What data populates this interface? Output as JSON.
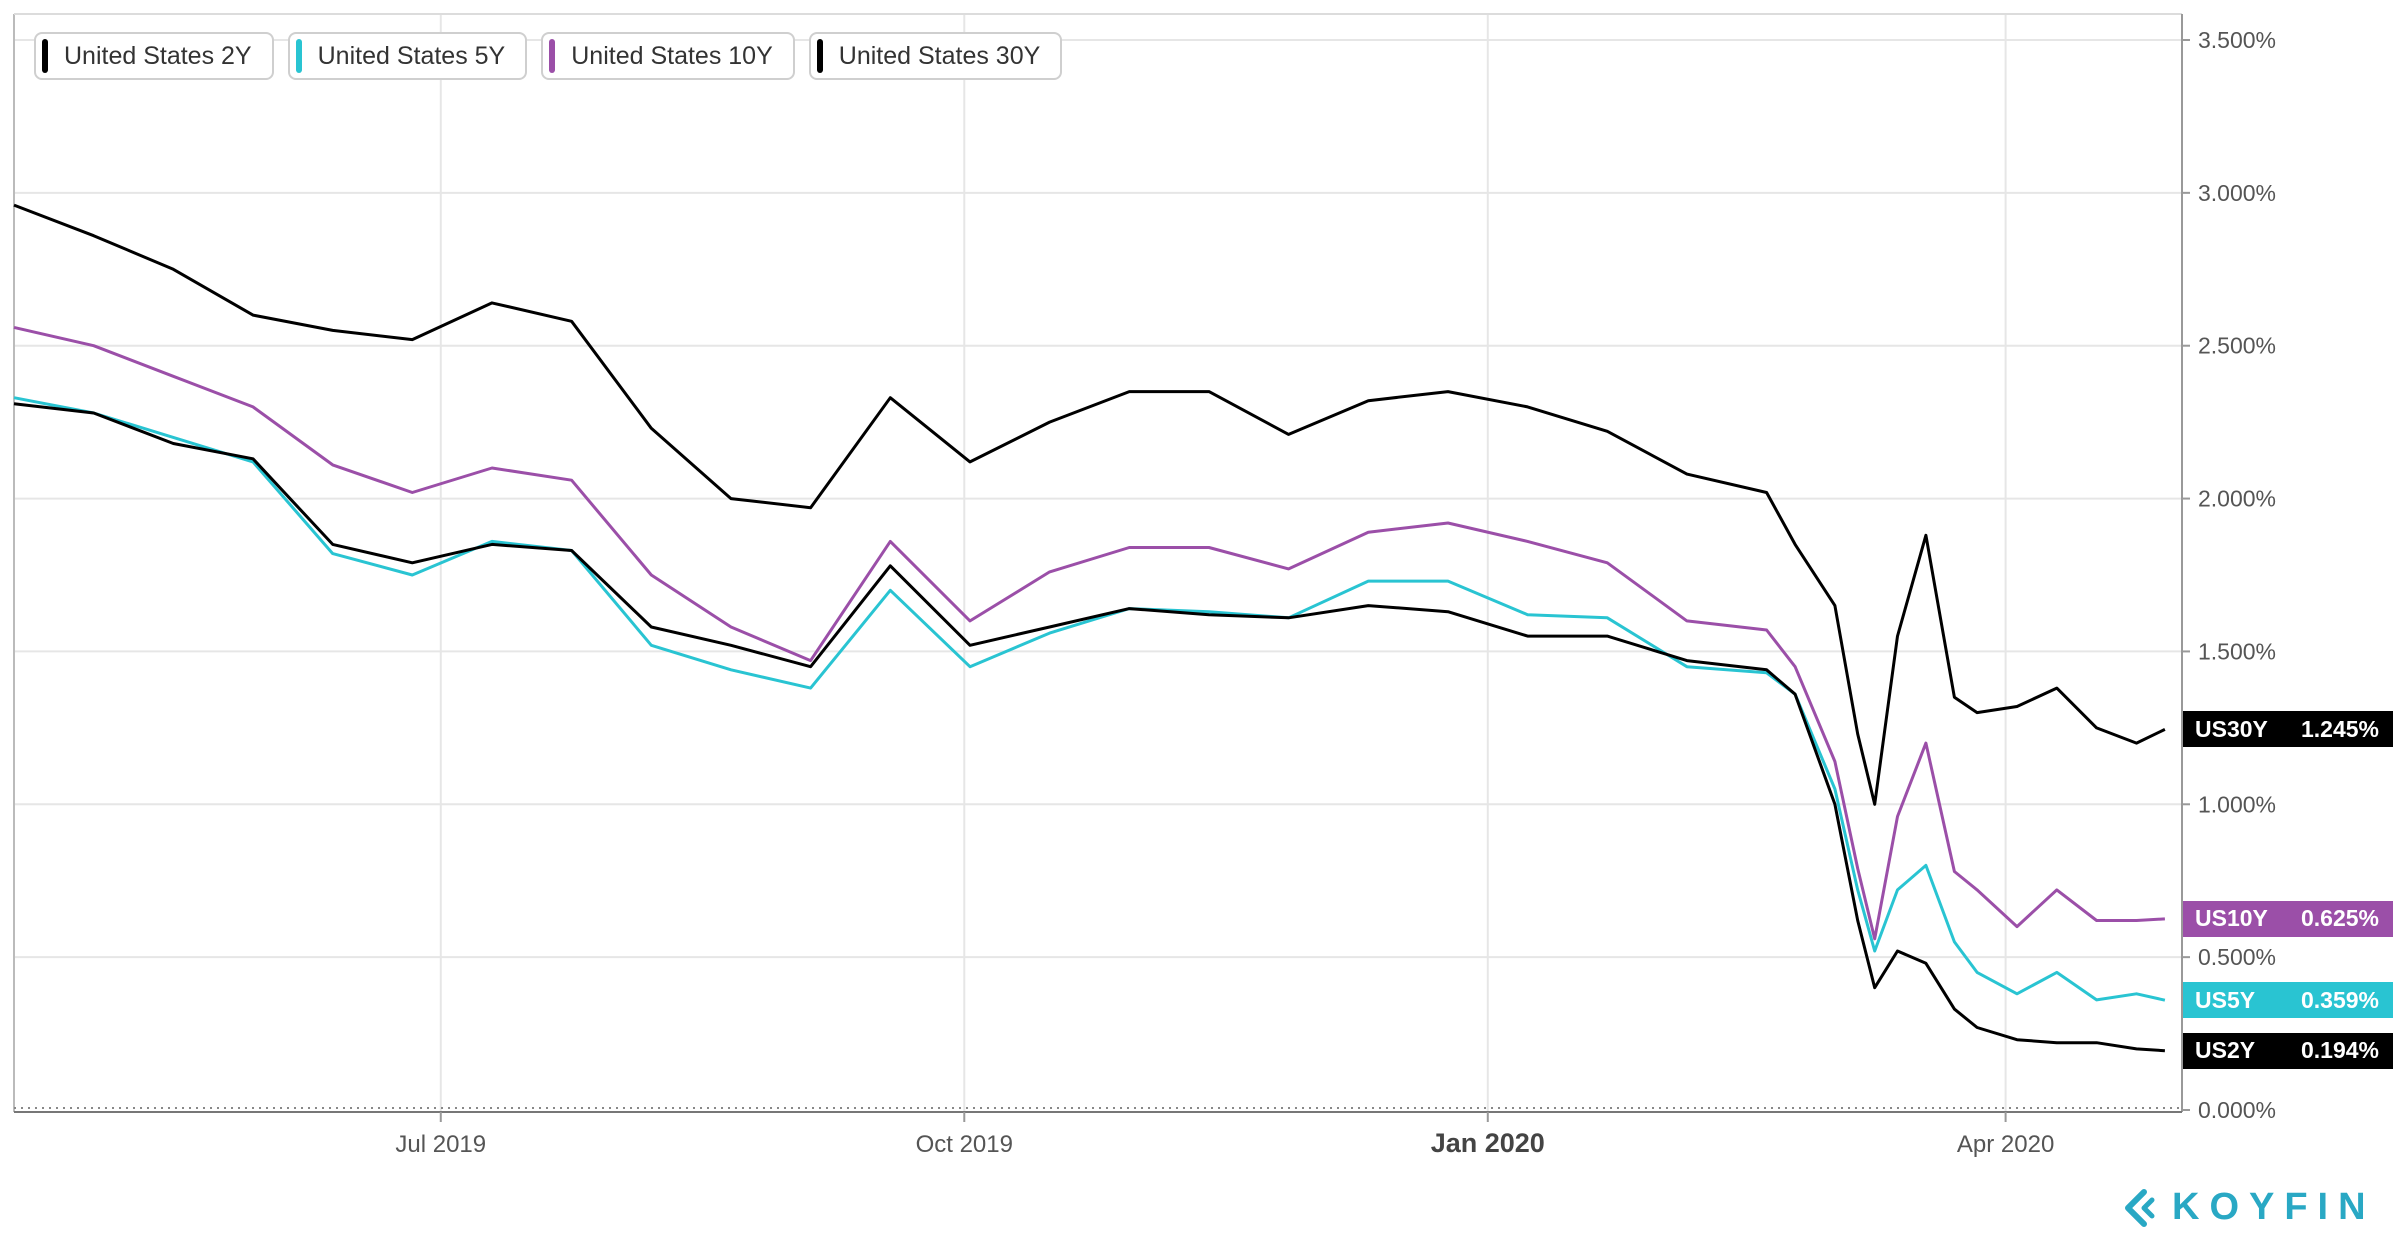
{
  "chart_data": {
    "type": "line",
    "title": "",
    "xlabel": "",
    "ylabel": "",
    "ylim": [
      0,
      3.5
    ],
    "y_ticks": [
      "3.500%",
      "3.000%",
      "2.500%",
      "2.000%",
      "1.500%",
      "1.000%",
      "0.500%",
      "0.000%"
    ],
    "y_tick_values": [
      3.5,
      3.0,
      2.5,
      2.0,
      1.5,
      1.0,
      0.5,
      0.0
    ],
    "x_ticks": [
      {
        "label": "Jul 2019",
        "date": "2019-07-01",
        "bold": false
      },
      {
        "label": "Oct 2019",
        "date": "2019-10-01",
        "bold": false
      },
      {
        "label": "Jan 2020",
        "date": "2020-01-01",
        "bold": true
      },
      {
        "label": "Apr 2020",
        "date": "2020-04-01",
        "bold": false
      }
    ],
    "x_range": [
      "2019-04-17",
      "2020-05-02"
    ],
    "grid": true,
    "legend_placement": "top-left",
    "dates": [
      "2019-04-17",
      "2019-05-01",
      "2019-05-15",
      "2019-05-29",
      "2019-06-12",
      "2019-06-26",
      "2019-07-10",
      "2019-07-24",
      "2019-08-07",
      "2019-08-21",
      "2019-09-04",
      "2019-09-18",
      "2019-10-02",
      "2019-10-16",
      "2019-10-30",
      "2019-11-13",
      "2019-11-27",
      "2019-12-11",
      "2019-12-25",
      "2020-01-08",
      "2020-01-22",
      "2020-02-05",
      "2020-02-19",
      "2020-02-24",
      "2020-03-02",
      "2020-03-06",
      "2020-03-09",
      "2020-03-13",
      "2020-03-18",
      "2020-03-23",
      "2020-03-27",
      "2020-04-03",
      "2020-04-10",
      "2020-04-17",
      "2020-04-24",
      "2020-04-29"
    ],
    "series": [
      {
        "name": "United States 2Y",
        "tag": "US2Y",
        "last_value_label": "0.194%",
        "last_value": 0.194,
        "color": "#000000",
        "values": [
          2.31,
          2.28,
          2.18,
          2.13,
          1.85,
          1.79,
          1.85,
          1.83,
          1.58,
          1.52,
          1.45,
          1.78,
          1.52,
          1.58,
          1.64,
          1.62,
          1.61,
          1.65,
          1.63,
          1.55,
          1.55,
          1.47,
          1.44,
          1.36,
          1.0,
          0.62,
          0.4,
          0.52,
          0.48,
          0.33,
          0.27,
          0.23,
          0.22,
          0.22,
          0.2,
          0.194
        ]
      },
      {
        "name": "United States 5Y",
        "tag": "US5Y",
        "last_value_label": "0.359%",
        "last_value": 0.359,
        "color": "#29c4d2",
        "values": [
          2.33,
          2.28,
          2.2,
          2.12,
          1.82,
          1.75,
          1.86,
          1.83,
          1.52,
          1.44,
          1.38,
          1.7,
          1.45,
          1.56,
          1.64,
          1.63,
          1.61,
          1.73,
          1.73,
          1.62,
          1.61,
          1.45,
          1.43,
          1.36,
          1.05,
          0.72,
          0.52,
          0.72,
          0.8,
          0.55,
          0.45,
          0.38,
          0.45,
          0.36,
          0.38,
          0.359
        ]
      },
      {
        "name": "United States 10Y",
        "tag": "US10Y",
        "last_value_label": "0.625%",
        "last_value": 0.625,
        "color": "#9b4fa8",
        "values": [
          2.56,
          2.5,
          2.4,
          2.3,
          2.11,
          2.02,
          2.1,
          2.06,
          1.75,
          1.58,
          1.47,
          1.86,
          1.6,
          1.76,
          1.84,
          1.84,
          1.77,
          1.89,
          1.92,
          1.86,
          1.79,
          1.6,
          1.57,
          1.45,
          1.14,
          0.79,
          0.56,
          0.96,
          1.2,
          0.78,
          0.72,
          0.6,
          0.72,
          0.62,
          0.62,
          0.625
        ]
      },
      {
        "name": "United States 30Y",
        "tag": "US30Y",
        "last_value_label": "1.245%",
        "last_value": 1.245,
        "color": "#000000",
        "values": [
          2.96,
          2.86,
          2.75,
          2.6,
          2.55,
          2.52,
          2.64,
          2.58,
          2.23,
          2.0,
          1.97,
          2.33,
          2.12,
          2.25,
          2.35,
          2.35,
          2.21,
          2.32,
          2.35,
          2.3,
          2.22,
          2.08,
          2.02,
          1.85,
          1.65,
          1.23,
          1.0,
          1.55,
          1.88,
          1.35,
          1.3,
          1.32,
          1.38,
          1.25,
          1.2,
          1.245
        ]
      }
    ]
  },
  "branding": {
    "logo_text": "KOYFIN"
  }
}
